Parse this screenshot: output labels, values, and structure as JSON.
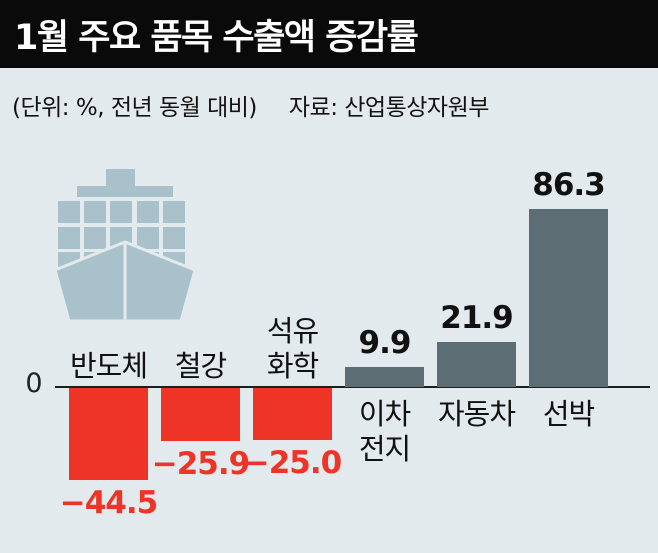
{
  "header": {
    "title": "1월 주요 품목 수출액 증감률"
  },
  "meta": {
    "unit_note": "(단위: %, 전년 동월 대비)",
    "source": "자료: 산업통상자원부"
  },
  "axis": {
    "zero_label": "0"
  },
  "icons": {
    "ship": "container-ship-icon"
  },
  "colors": {
    "background": "#e3eaed",
    "titlebar_bg": "#0a0a0a",
    "titlebar_text": "#ffffff",
    "negative_bar": "#ee3426",
    "negative_value_text": "#ee3426",
    "positive_bar": "#5c6d74",
    "positive_value_text": "#111111",
    "ship_icon": "#a9c1ca",
    "axis_line": "#1d1d1d"
  },
  "chart_data": {
    "type": "bar",
    "title": "1월 주요 품목 수출액 증감률",
    "unit": "%, 전년 동월 대비",
    "source": "산업통상자원부",
    "categories": [
      "반도체",
      "철강",
      "석유화학",
      "이차전지",
      "자동차",
      "선박"
    ],
    "category_slugs": [
      "semiconductor",
      "steel",
      "petrochemical",
      "secondary-battery",
      "automobile",
      "ship"
    ],
    "category_lines": [
      [
        "반도체"
      ],
      [
        "철강"
      ],
      [
        "석유",
        "화학"
      ],
      [
        "이차",
        "전지"
      ],
      [
        "자동차"
      ],
      [
        "선박"
      ]
    ],
    "values": [
      -44.5,
      -25.9,
      -25.0,
      9.9,
      21.9,
      86.3
    ],
    "value_labels": [
      "−44.5",
      "−25.9",
      "−25.0",
      "9.9",
      "21.9",
      "86.3"
    ],
    "xlabel": "",
    "ylabel": "",
    "ylim": [
      -50,
      90
    ],
    "grid": false,
    "legend": false,
    "baseline": 0
  }
}
